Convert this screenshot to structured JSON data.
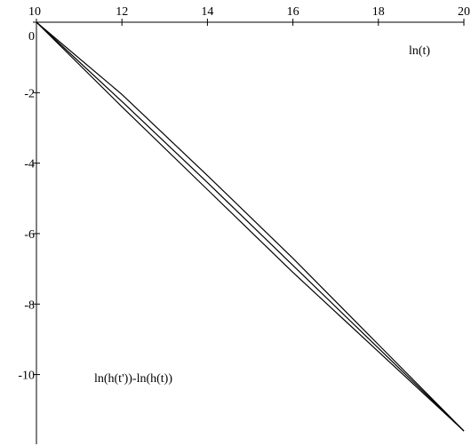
{
  "chart_data": {
    "type": "line",
    "title": "",
    "xlabel": "ln(t)",
    "ylabel": "ln(h(t'))-ln(h(t))",
    "xlim": [
      10,
      20
    ],
    "ylim": [
      -11.7,
      0
    ],
    "x_ticks": [
      10,
      12,
      14,
      16,
      18,
      20
    ],
    "y_ticks": [
      0,
      -2,
      -4,
      -6,
      -8,
      -10
    ],
    "x_tick_labels": [
      "10",
      "12",
      "14",
      "16",
      "18",
      "20"
    ],
    "y_tick_labels": [
      "0",
      "-2",
      "-4",
      "-6",
      "-8",
      "-10"
    ],
    "grid": false,
    "legend": "none",
    "line_color": "#000000",
    "series": [
      {
        "x": [
          10,
          12,
          14,
          16,
          18,
          20
        ],
        "y": [
          0,
          -2.05,
          -4.35,
          -6.7,
          -9.15,
          -11.6
        ]
      },
      {
        "x": [
          10,
          12,
          14,
          16,
          18,
          20
        ],
        "y": [
          0,
          -2.25,
          -4.55,
          -6.9,
          -9.25,
          -11.6
        ]
      },
      {
        "x": [
          10,
          12,
          14,
          16,
          18,
          20
        ],
        "y": [
          0,
          -2.4,
          -4.75,
          -7.1,
          -9.35,
          -11.6
        ]
      }
    ]
  }
}
